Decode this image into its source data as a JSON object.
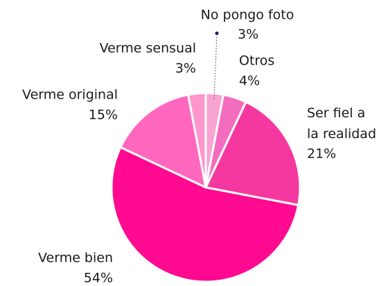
{
  "chart_data": {
    "type": "pie",
    "categories": [
      "No pongo foto",
      "Otros",
      "Ser fiel a\nla realidad",
      "Verme bien",
      "Verme original",
      "Verme sensual"
    ],
    "values": [
      3,
      4,
      21,
      54,
      15,
      3
    ],
    "value_labels": [
      "3%",
      "4%",
      "21%",
      "54%",
      "15%",
      "3%"
    ],
    "colors": [
      "#f9a3d3",
      "#f46cbd",
      "#f5389f",
      "#ff0a91",
      "#ff67bf",
      "#ff96cd"
    ]
  }
}
